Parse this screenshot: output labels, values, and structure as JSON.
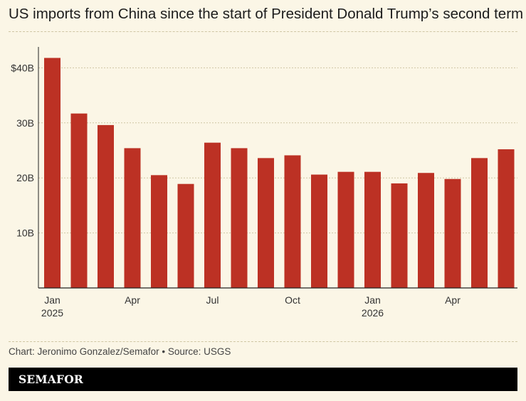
{
  "title": "US imports from China since the start of President Donald Trump’s second term",
  "source": "Chart: Jeronimo Gonzalez/Semafor • Source: USGS",
  "brand": "SEMAFOR",
  "colors": {
    "bar": "#BC3124",
    "background": "#FBF6E6",
    "grid": "#cfc6a4",
    "axis": "#222222"
  },
  "chart_data": {
    "type": "bar",
    "title": "US imports from China since the start of President Donald Trump’s second term",
    "xlabel": "",
    "ylabel": "",
    "categories": [
      "Jan 2025",
      "Feb 2025",
      "Mar 2025",
      "Apr 2025",
      "May 2025",
      "Jun 2025",
      "Jul 2025",
      "Aug 2025",
      "Sep 2025",
      "Oct 2025",
      "Nov 2025",
      "Dec 2025",
      "Jan 2026",
      "Feb 2026",
      "Mar 2026",
      "Apr 2026",
      "May 2026",
      "Jun 2026"
    ],
    "values": [
      41.8,
      31.7,
      29.6,
      25.4,
      20.5,
      18.9,
      26.4,
      25.4,
      23.6,
      24.1,
      20.6,
      21.1,
      21.1,
      19.0,
      20.9,
      19.8,
      23.6,
      25.2
    ],
    "value_unit": "billion USD",
    "ylim": [
      0,
      45
    ],
    "yticks": [
      10,
      20,
      30,
      40
    ],
    "ytick_labels": [
      "10B",
      "20B",
      "30B",
      "$40B"
    ],
    "xtick_labels": [
      {
        "index": 0,
        "month": "Jan",
        "year": "2025"
      },
      {
        "index": 3,
        "month": "Apr",
        "year": ""
      },
      {
        "index": 6,
        "month": "Jul",
        "year": ""
      },
      {
        "index": 9,
        "month": "Oct",
        "year": ""
      },
      {
        "index": 12,
        "month": "Jan",
        "year": "2026"
      },
      {
        "index": 15,
        "month": "Apr",
        "year": ""
      }
    ],
    "grid": true,
    "legend": "none"
  }
}
